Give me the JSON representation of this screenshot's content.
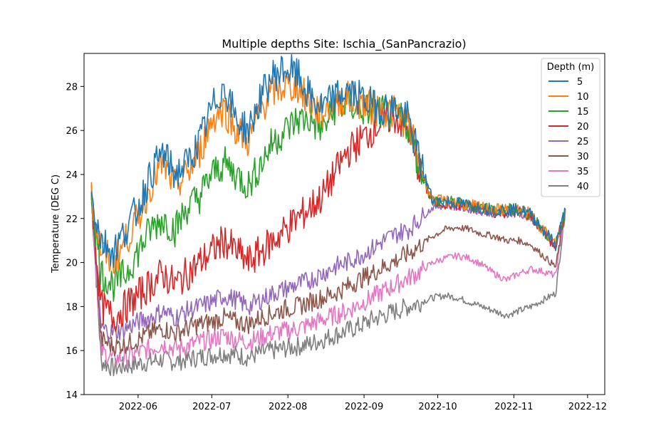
{
  "chart_data": {
    "type": "line",
    "title": "Multiple depths Site: Ischia_(SanPancrazio)",
    "xlabel": "",
    "ylabel": "Temperature (DEG C)",
    "xlim": [
      "2022-05-10",
      "2022-12-08"
    ],
    "ylim": [
      14,
      29.5
    ],
    "x_ticks": [
      "2022-06",
      "2022-07",
      "2022-08",
      "2022-09",
      "2022-10",
      "2022-11",
      "2022-12"
    ],
    "y_ticks": [
      14,
      16,
      18,
      20,
      22,
      24,
      26,
      28
    ],
    "legend": {
      "title": "Depth (m)",
      "placement": "upper right"
    },
    "x_dates": [
      "2022-05-13",
      "2022-05-17",
      "2022-05-22",
      "2022-05-27",
      "2022-06-01",
      "2022-06-06",
      "2022-06-11",
      "2022-06-16",
      "2022-06-21",
      "2022-06-26",
      "2022-07-01",
      "2022-07-06",
      "2022-07-11",
      "2022-07-16",
      "2022-07-21",
      "2022-07-26",
      "2022-07-31",
      "2022-08-05",
      "2022-08-10",
      "2022-08-15",
      "2022-08-20",
      "2022-08-25",
      "2022-08-30",
      "2022-09-04",
      "2022-09-09",
      "2022-09-14",
      "2022-09-19",
      "2022-09-24",
      "2022-09-29",
      "2022-10-04",
      "2022-10-09",
      "2022-10-14",
      "2022-10-19",
      "2022-10-24",
      "2022-10-29",
      "2022-11-03",
      "2022-11-08",
      "2022-11-13",
      "2022-11-18",
      "2022-11-22"
    ],
    "series": [
      {
        "name": "5",
        "color": "#1f77b4",
        "values": [
          23.0,
          21.0,
          20.5,
          21.5,
          22.5,
          24.0,
          25.0,
          24.0,
          24.5,
          25.5,
          27.0,
          28.0,
          26.5,
          26.0,
          27.5,
          28.5,
          28.8,
          28.5,
          27.5,
          27.0,
          27.5,
          27.8,
          27.5,
          27.2,
          27.0,
          27.0,
          26.5,
          24.5,
          22.8,
          22.8,
          22.7,
          22.6,
          22.5,
          22.4,
          22.4,
          22.4,
          22.2,
          21.5,
          20.8,
          22.4
        ]
      },
      {
        "name": "10",
        "color": "#ff7f0e",
        "values": [
          23.0,
          20.5,
          20.0,
          21.0,
          22.0,
          23.5,
          24.5,
          23.5,
          24.0,
          25.0,
          26.5,
          27.0,
          26.0,
          25.5,
          27.0,
          27.8,
          28.0,
          28.0,
          27.2,
          26.8,
          27.3,
          27.5,
          27.3,
          27.0,
          26.9,
          26.8,
          26.3,
          24.3,
          22.8,
          22.8,
          22.7,
          22.6,
          22.5,
          22.4,
          22.4,
          22.4,
          22.2,
          21.5,
          20.8,
          22.4
        ]
      },
      {
        "name": "15",
        "color": "#2ca02c",
        "values": [
          23.0,
          19.5,
          19.0,
          19.5,
          20.5,
          21.5,
          22.0,
          21.5,
          22.5,
          23.0,
          24.0,
          24.5,
          24.0,
          23.5,
          24.5,
          25.5,
          26.0,
          26.5,
          26.5,
          26.0,
          27.0,
          27.2,
          27.0,
          26.9,
          26.8,
          26.7,
          26.2,
          24.2,
          22.8,
          22.8,
          22.7,
          22.6,
          22.5,
          22.4,
          22.4,
          22.4,
          22.2,
          21.5,
          20.8,
          22.4
        ]
      },
      {
        "name": "20",
        "color": "#d62728",
        "values": [
          23.0,
          18.0,
          17.5,
          18.0,
          18.5,
          19.0,
          19.5,
          19.0,
          19.5,
          20.0,
          20.5,
          21.0,
          20.5,
          20.0,
          20.5,
          21.0,
          21.5,
          22.0,
          22.5,
          23.0,
          24.0,
          25.0,
          25.5,
          26.0,
          26.5,
          26.6,
          26.0,
          24.0,
          22.7,
          22.7,
          22.6,
          22.5,
          22.4,
          22.3,
          22.3,
          22.3,
          22.1,
          21.4,
          20.7,
          22.4
        ]
      },
      {
        "name": "25",
        "color": "#9467bd",
        "values": [
          23.0,
          17.0,
          16.8,
          17.0,
          17.3,
          17.5,
          17.8,
          17.5,
          17.8,
          18.0,
          18.2,
          18.5,
          18.3,
          18.0,
          18.3,
          18.6,
          18.8,
          19.0,
          19.2,
          19.5,
          19.8,
          20.0,
          20.3,
          20.6,
          21.0,
          21.3,
          21.5,
          22.0,
          22.5,
          22.6,
          22.5,
          22.4,
          22.3,
          22.2,
          22.2,
          22.2,
          22.0,
          21.3,
          20.6,
          22.4
        ]
      },
      {
        "name": "30",
        "color": "#8c564b",
        "values": [
          23.0,
          16.5,
          16.2,
          16.3,
          16.5,
          16.8,
          17.0,
          16.8,
          17.0,
          17.2,
          17.3,
          17.5,
          17.3,
          17.2,
          17.5,
          17.7,
          17.9,
          18.0,
          18.2,
          18.4,
          18.6,
          18.9,
          19.2,
          19.5,
          19.8,
          20.1,
          20.4,
          20.8,
          21.2,
          21.5,
          21.6,
          21.5,
          21.3,
          21.2,
          21.0,
          21.0,
          20.8,
          20.3,
          19.8,
          22.4
        ]
      },
      {
        "name": "35",
        "color": "#e377c2",
        "values": [
          23.0,
          16.0,
          15.6,
          15.7,
          15.9,
          16.1,
          16.3,
          16.1,
          16.2,
          16.4,
          16.5,
          16.7,
          16.5,
          16.4,
          16.6,
          16.8,
          16.9,
          17.0,
          17.2,
          17.4,
          17.6,
          17.8,
          18.1,
          18.4,
          18.7,
          19.0,
          19.3,
          19.6,
          20.0,
          20.2,
          20.3,
          20.2,
          19.9,
          19.5,
          19.2,
          19.5,
          19.7,
          19.6,
          19.4,
          22.4
        ]
      },
      {
        "name": "40",
        "color": "#7f7f7f",
        "values": [
          23.0,
          15.5,
          15.2,
          15.3,
          15.4,
          15.5,
          15.6,
          15.5,
          15.6,
          15.7,
          15.8,
          15.9,
          15.8,
          15.7,
          15.9,
          16.0,
          16.1,
          16.2,
          16.3,
          16.5,
          16.7,
          16.9,
          17.1,
          17.4,
          17.6,
          17.8,
          18.0,
          18.2,
          18.4,
          18.5,
          18.4,
          18.2,
          18.0,
          17.8,
          17.6,
          17.8,
          18.0,
          18.3,
          18.6,
          22.4
        ]
      }
    ]
  }
}
